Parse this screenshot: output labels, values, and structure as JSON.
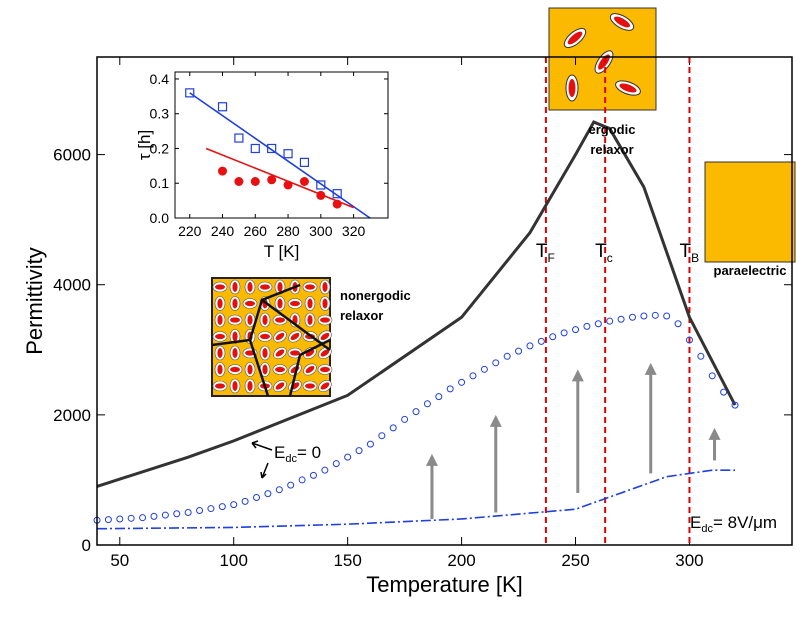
{
  "chart_data": [
    {
      "type": "line",
      "xlabel": "Temperature  [K]",
      "ylabel": "Permittivity",
      "xlim": [
        40,
        345
      ],
      "ylim": [
        0,
        7500
      ],
      "xticks": [
        50,
        100,
        150,
        200,
        250,
        300
      ],
      "yticks": [
        0,
        2000,
        4000,
        6000
      ],
      "series": [
        {
          "style": "line",
          "color": "#333333",
          "x": [
            40,
            80,
            100,
            150,
            200,
            230,
            250,
            258,
            265,
            280,
            300,
            320
          ],
          "values": [
            900,
            1350,
            1600,
            2300,
            3500,
            4800,
            6000,
            6500,
            6400,
            5500,
            3500,
            2150
          ]
        },
        {
          "style": "circles",
          "color": "#1f3fe0",
          "x": [
            40,
            45,
            50,
            55,
            60,
            65,
            70,
            75,
            80,
            85,
            90,
            95,
            100,
            105,
            110,
            115,
            120,
            125,
            130,
            135,
            140,
            145,
            150,
            155,
            160,
            165,
            170,
            175,
            180,
            185,
            190,
            195,
            200,
            205,
            210,
            215,
            220,
            225,
            230,
            235,
            240,
            245,
            250,
            255,
            260,
            265,
            270,
            275,
            280,
            285,
            290,
            295,
            300,
            305,
            310,
            315,
            320
          ],
          "values": [
            380,
            390,
            400,
            410,
            420,
            440,
            460,
            480,
            500,
            530,
            560,
            590,
            620,
            670,
            730,
            790,
            850,
            920,
            1000,
            1070,
            1150,
            1250,
            1350,
            1450,
            1550,
            1680,
            1800,
            1930,
            2050,
            2170,
            2280,
            2400,
            2500,
            2600,
            2700,
            2800,
            2900,
            2980,
            3060,
            3130,
            3200,
            3260,
            3310,
            3360,
            3400,
            3440,
            3470,
            3500,
            3520,
            3530,
            3520,
            3400,
            3150,
            2900,
            2600,
            2350,
            2150
          ]
        },
        {
          "style": "dashdot",
          "color": "#1f3fe0",
          "x": [
            40,
            100,
            150,
            200,
            250,
            270,
            290,
            300,
            310,
            320
          ],
          "values": [
            250,
            270,
            320,
            400,
            550,
            800,
            1050,
            1100,
            1150,
            1150
          ]
        }
      ],
      "vlines": [
        {
          "value": 237,
          "label": "T",
          "sub": "F"
        },
        {
          "value": 263,
          "label": "T",
          "sub": "c"
        },
        {
          "value": 300,
          "label": "T",
          "sub": "B"
        }
      ],
      "vline_color": "#e00000",
      "annotations": [
        {
          "text": "E",
          "sub": "dc",
          "tail": "= 0"
        },
        {
          "text": "E",
          "sub": "dc",
          "tail": "= 8V/μm"
        },
        {
          "text": "nonergodic"
        },
        {
          "text": "relaxor"
        },
        {
          "text": "ergodic"
        },
        {
          "text": "relaxor"
        },
        {
          "text": "paraelectric"
        }
      ]
    },
    {
      "type": "scatter",
      "xlabel": "T  [K]",
      "ylabel": "τ [h]",
      "xlim": [
        211,
        341
      ],
      "ylim": [
        0,
        0.42
      ],
      "xticks": [
        220,
        240,
        260,
        280,
        300,
        320
      ],
      "yticks": [
        {
          "value": 0,
          "label": "0.0"
        },
        0.1,
        0.2,
        0.3,
        0.4
      ],
      "series": [
        {
          "style": "squares",
          "color": "#1f3fe0",
          "x": [
            220,
            240,
            250,
            260,
            270,
            280,
            290,
            300,
            310
          ],
          "values": [
            0.36,
            0.32,
            0.23,
            0.2,
            0.2,
            0.185,
            0.16,
            0.095,
            0.07
          ]
        },
        {
          "style": "filled-circles",
          "color": "#e81010",
          "x": [
            240,
            250,
            260,
            270,
            280,
            290,
            300,
            310
          ],
          "values": [
            0.135,
            0.105,
            0.105,
            0.11,
            0.095,
            0.105,
            0.065,
            0.04
          ]
        },
        {
          "style": "line",
          "color": "#1f3fe0",
          "x": [
            220,
            330
          ],
          "values": [
            0.36,
            0
          ]
        },
        {
          "style": "line",
          "color": "#e81010",
          "x": [
            230,
            320
          ],
          "values": [
            0.2,
            0.03
          ]
        }
      ]
    }
  ]
}
